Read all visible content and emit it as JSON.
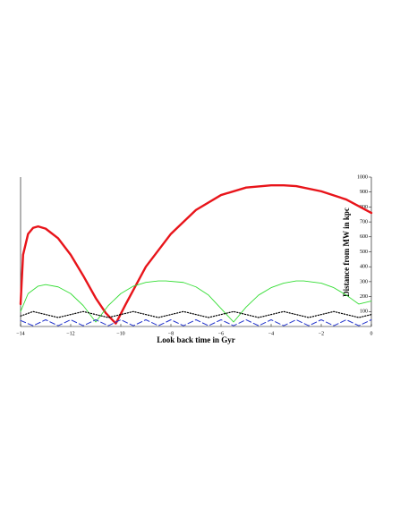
{
  "chart_data": {
    "type": "line",
    "x_label": "Look back time in Gyr",
    "y_label": "Distance from MW in kpc",
    "xlim": [
      -14,
      0
    ],
    "ylim": [
      0,
      1000
    ],
    "xticks": [
      {
        "value": -14,
        "label": "−14"
      },
      {
        "value": -12,
        "label": "−12"
      },
      {
        "value": -10,
        "label": "−10"
      },
      {
        "value": -8,
        "label": "−8"
      },
      {
        "value": -6,
        "label": "−6"
      },
      {
        "value": -4,
        "label": "−4"
      },
      {
        "value": -2,
        "label": "−2"
      },
      0
    ],
    "yticks": [
      100,
      200,
      300,
      400,
      500,
      600,
      700,
      800,
      900,
      1000
    ],
    "series": [
      {
        "color": "#e8141a",
        "dash": "solid",
        "x": [
          -14,
          -13.9,
          -13.7,
          -13.5,
          -13.3,
          -13.0,
          -12.5,
          -12.0,
          -11.5,
          -11.0,
          -10.6,
          -10.2,
          -9.8,
          -9.0,
          -8.0,
          -7.0,
          -6.0,
          -5.0,
          -4.0,
          -3.5,
          -3.0,
          -2.0,
          -1.0,
          0
        ],
        "values": [
          150,
          480,
          620,
          660,
          670,
          655,
          590,
          480,
          340,
          190,
          90,
          20,
          150,
          400,
          620,
          780,
          880,
          930,
          945,
          945,
          940,
          905,
          850,
          760
        ]
      },
      {
        "color": "#33dd33",
        "dash": "solid",
        "x": [
          -14,
          -13.7,
          -13.3,
          -13,
          -12.5,
          -12,
          -11.5,
          -11,
          -10.5,
          -10,
          -9.5,
          -9,
          -8.5,
          -8.2,
          -7.5,
          -7,
          -6.5,
          -6,
          -5.5,
          -5,
          -4.5,
          -4,
          -3.5,
          -3,
          -2.7,
          -2,
          -1.5,
          -1,
          -0.5,
          0
        ],
        "values": [
          100,
          220,
          270,
          280,
          265,
          220,
          140,
          30,
          140,
          220,
          270,
          295,
          305,
          305,
          295,
          265,
          210,
          120,
          30,
          130,
          210,
          260,
          290,
          305,
          305,
          290,
          260,
          210,
          150,
          170
        ]
      },
      {
        "color": "#000000",
        "dash": "dotted",
        "x": [
          -14,
          -13.5,
          -13,
          -12.5,
          -12,
          -11.5,
          -11,
          -10.5,
          -10,
          -9.5,
          -9,
          -8.5,
          -8,
          -7.5,
          -7,
          -6.5,
          -6,
          -5.5,
          -5,
          -4.5,
          -4,
          -3.5,
          -3,
          -2.5,
          -2,
          -1.5,
          -1,
          -0.5,
          0
        ],
        "values": [
          70,
          100,
          80,
          60,
          80,
          100,
          80,
          60,
          80,
          100,
          80,
          60,
          80,
          100,
          80,
          60,
          80,
          100,
          80,
          60,
          80,
          100,
          80,
          60,
          80,
          100,
          80,
          60,
          80
        ]
      },
      {
        "color": "#2233cc",
        "dash": "dashed",
        "x": [
          -14,
          -13.5,
          -13,
          -12.5,
          -12,
          -11.5,
          -11,
          -10.5,
          -10,
          -9.5,
          -9,
          -8.5,
          -8,
          -7.5,
          -7,
          -6.5,
          -6,
          -5.5,
          -5,
          -4.5,
          -4,
          -3.5,
          -3,
          -2.5,
          -2,
          -1.5,
          -1,
          -0.5,
          0
        ],
        "values": [
          40,
          5,
          45,
          5,
          45,
          5,
          45,
          5,
          45,
          5,
          45,
          5,
          45,
          5,
          45,
          5,
          45,
          5,
          45,
          5,
          45,
          5,
          45,
          5,
          45,
          5,
          45,
          5,
          45
        ]
      }
    ]
  }
}
